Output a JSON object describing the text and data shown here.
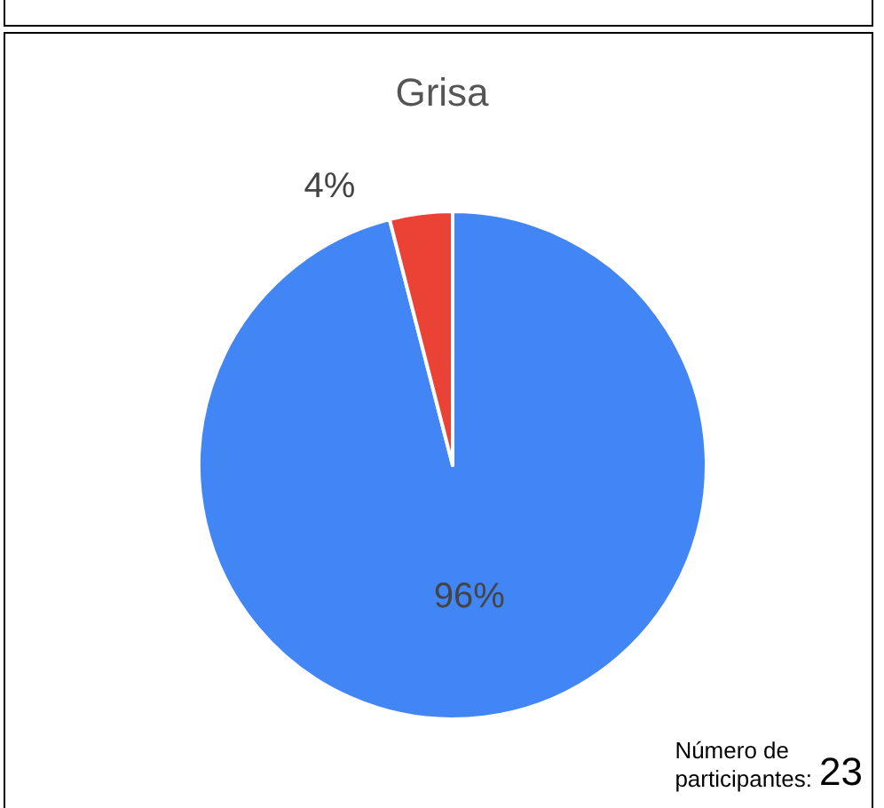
{
  "chart_data": {
    "type": "pie",
    "title": "Grisa",
    "categories": [
      null,
      null
    ],
    "values": [
      96,
      4
    ],
    "colors": [
      "#4285f4",
      "#ea4335"
    ],
    "value_labels": [
      "96%",
      "4%"
    ],
    "annotations": [
      "Número de\nparticipantes:",
      "23"
    ]
  }
}
